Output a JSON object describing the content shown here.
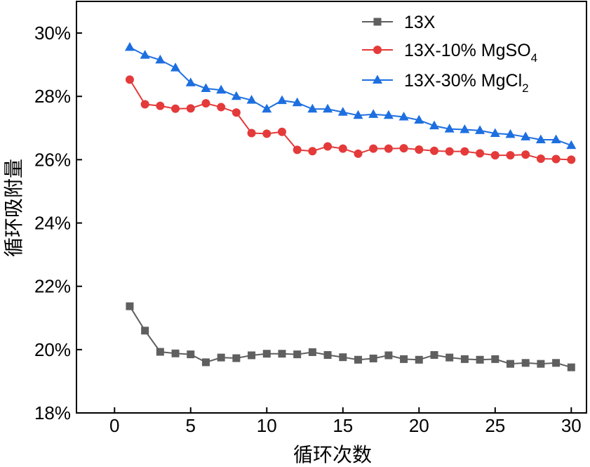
{
  "chart_data": {
    "type": "line",
    "title": "",
    "xlabel": "循环次数",
    "ylabel": "循环吸附量",
    "xlim": [
      -2.5,
      31
    ],
    "ylim": [
      18,
      31
    ],
    "x_ticks": [
      0,
      5,
      10,
      15,
      20,
      25,
      30
    ],
    "y_ticks": [
      18,
      20,
      22,
      24,
      26,
      28,
      30
    ],
    "x_tick_labels": [
      "0",
      "5",
      "10",
      "15",
      "20",
      "25",
      "30"
    ],
    "y_tick_labels": [
      "18%",
      "20%",
      "22%",
      "24%",
      "26%",
      "28%",
      "30%"
    ],
    "grid": false,
    "legend_position": "top-right",
    "x": [
      1,
      2,
      3,
      4,
      5,
      6,
      7,
      8,
      9,
      10,
      11,
      12,
      13,
      14,
      15,
      16,
      17,
      18,
      19,
      20,
      21,
      22,
      23,
      24,
      25,
      26,
      27,
      28,
      29,
      30
    ],
    "series": [
      {
        "name": "13X",
        "legend_main": "13X",
        "legend_sub": "",
        "legend_tail": "",
        "color": "#5f5f5f",
        "marker": "square",
        "values": [
          21.37,
          20.6,
          19.93,
          19.88,
          19.85,
          19.6,
          19.75,
          19.73,
          19.82,
          19.87,
          19.87,
          19.85,
          19.92,
          19.83,
          19.76,
          19.68,
          19.72,
          19.82,
          19.7,
          19.68,
          19.83,
          19.75,
          19.7,
          19.68,
          19.7,
          19.55,
          19.58,
          19.55,
          19.58,
          19.44
        ]
      },
      {
        "name": "13X-10% MgSO4",
        "legend_main": "13X-10% MgSO",
        "legend_sub": "4",
        "legend_tail": "",
        "color": "#e43a3a",
        "marker": "circle",
        "values": [
          28.53,
          27.75,
          27.7,
          27.61,
          27.62,
          27.78,
          27.66,
          27.49,
          26.84,
          26.82,
          26.88,
          26.31,
          26.27,
          26.42,
          26.35,
          26.19,
          26.35,
          26.35,
          26.36,
          26.32,
          26.28,
          26.26,
          26.26,
          26.2,
          26.14,
          26.14,
          26.16,
          26.03,
          26.02,
          26.0
        ]
      },
      {
        "name": "13X-30% MgCl2",
        "legend_main": "13X-30% MgCl",
        "legend_sub": "2",
        "legend_tail": "",
        "color": "#1d6fe0",
        "marker": "triangle",
        "values": [
          29.55,
          29.3,
          29.15,
          28.9,
          28.43,
          28.25,
          28.2,
          28.0,
          27.88,
          27.6,
          27.87,
          27.8,
          27.6,
          27.6,
          27.5,
          27.4,
          27.43,
          27.4,
          27.35,
          27.25,
          27.07,
          26.97,
          26.95,
          26.92,
          26.83,
          26.8,
          26.72,
          26.63,
          26.63,
          26.45
        ]
      }
    ]
  }
}
